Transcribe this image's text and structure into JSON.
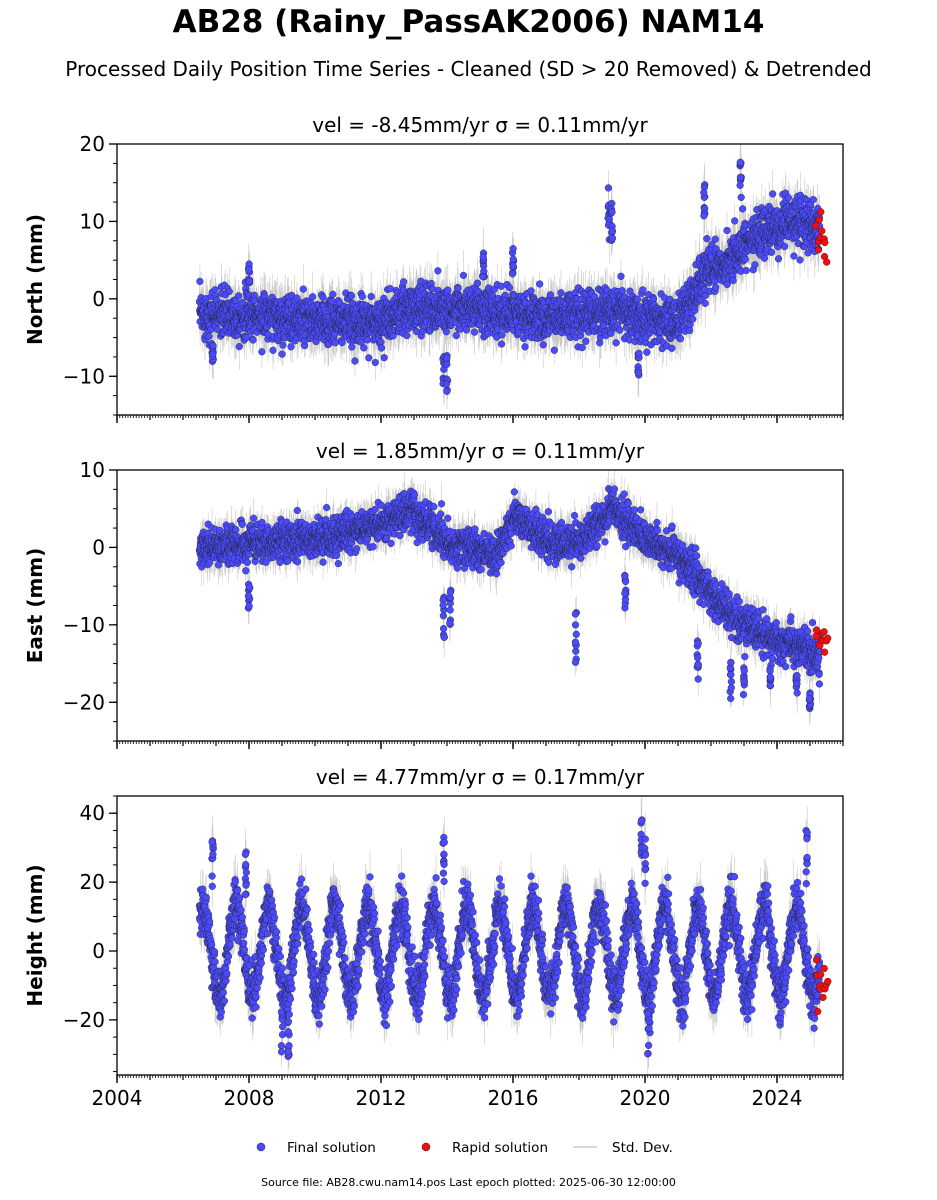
{
  "title": "AB28 (Rainy_PassAK2006) NAM14",
  "subtitle": "Processed Daily Position Time Series - Cleaned (SD > 20 Removed) & Detrended",
  "source_note": "Source file: AB28.cwu.nam14.pos  Last epoch plotted: 2025-06-30 12:00:00",
  "legend": [
    {
      "label": "Final solution",
      "color": "#4a4aff",
      "kind": "marker"
    },
    {
      "label": "Rapid solution",
      "color": "#ee1111",
      "kind": "marker"
    },
    {
      "label": "Std. Dev.",
      "color": "#c8c8c8",
      "kind": "line"
    }
  ],
  "colors": {
    "final": "#4a4aff",
    "rapid": "#ee1111",
    "stddev": "#888888",
    "edge": "#222222"
  },
  "chart_data": [
    {
      "type": "scatter",
      "panel_title": "vel = -8.45mm/yr   σ = 0.11mm/yr",
      "ylabel": "North (mm)",
      "xlim": [
        2004,
        2026
      ],
      "ylim": [
        -15,
        20
      ],
      "yticks": [
        -10,
        0,
        10,
        20
      ],
      "ytick_labels": [
        "−10",
        "0",
        "10",
        "20"
      ],
      "xticks": [
        2004,
        2008,
        2012,
        2016,
        2020,
        2024
      ],
      "show_xtick_labels": false,
      "data_start": 2006.5,
      "data_end": 2025.3,
      "final_series_approx": [
        [
          2006.5,
          -2
        ],
        [
          2008,
          -2
        ],
        [
          2010,
          -3
        ],
        [
          2012,
          -3
        ],
        [
          2013,
          -1
        ],
        [
          2015,
          -1.5
        ],
        [
          2017,
          -2.5
        ],
        [
          2019,
          -1.5
        ],
        [
          2020,
          -2.5
        ],
        [
          2021,
          -3
        ],
        [
          2021.4,
          0
        ],
        [
          2021.9,
          4
        ],
        [
          2022.5,
          5
        ],
        [
          2023.5,
          8.5
        ],
        [
          2024.5,
          10
        ],
        [
          2025.3,
          9
        ]
      ],
      "rapid_range": [
        2025.2,
        2025.5
      ],
      "rapid_level": 8.5,
      "noise_sd": 1.5,
      "spikes": [
        [
          2006.9,
          -9
        ],
        [
          2008.0,
          5
        ],
        [
          2013.9,
          -11
        ],
        [
          2014.0,
          -12
        ],
        [
          2015.1,
          6
        ],
        [
          2016.0,
          7
        ],
        [
          2018.9,
          15
        ],
        [
          2019.0,
          14
        ],
        [
          2019.8,
          -10
        ],
        [
          2021.8,
          16
        ],
        [
          2022.9,
          18
        ]
      ]
    },
    {
      "type": "scatter",
      "panel_title": "vel = 1.85mm/yr   σ = 0.11mm/yr",
      "ylabel": "East (mm)",
      "xlim": [
        2004,
        2026
      ],
      "ylim": [
        -25,
        10
      ],
      "yticks": [
        -20,
        -10,
        0,
        10
      ],
      "ytick_labels": [
        "−20",
        "−10",
        "0",
        "10"
      ],
      "xticks": [
        2004,
        2008,
        2012,
        2016,
        2020,
        2024
      ],
      "show_xtick_labels": false,
      "data_start": 2006.5,
      "data_end": 2025.3,
      "final_series_approx": [
        [
          2006.5,
          0
        ],
        [
          2008,
          0.5
        ],
        [
          2010,
          1
        ],
        [
          2012,
          3
        ],
        [
          2013,
          5
        ],
        [
          2014,
          0.5
        ],
        [
          2015.5,
          -1
        ],
        [
          2016,
          4
        ],
        [
          2017,
          1
        ],
        [
          2018,
          0.5
        ],
        [
          2019,
          5
        ],
        [
          2020,
          1
        ],
        [
          2021,
          -1
        ],
        [
          2022,
          -6
        ],
        [
          2023,
          -10
        ],
        [
          2024,
          -12
        ],
        [
          2025.3,
          -14
        ]
      ],
      "rapid_range": [
        2025.2,
        2025.5
      ],
      "rapid_level": -12,
      "noise_sd": 1.2,
      "spikes": [
        [
          2008.0,
          -8
        ],
        [
          2013.9,
          -12
        ],
        [
          2014.1,
          -10
        ],
        [
          2017.9,
          -15
        ],
        [
          2019.4,
          -8
        ],
        [
          2021.6,
          -17
        ],
        [
          2022.6,
          -20
        ],
        [
          2023.0,
          -20
        ],
        [
          2023.8,
          -18
        ],
        [
          2024.6,
          -19
        ],
        [
          2025.0,
          -21
        ]
      ]
    },
    {
      "type": "scatter",
      "panel_title": "vel = 4.77mm/yr   σ = 0.17mm/yr",
      "ylabel": "Height (mm)",
      "xlim": [
        2004,
        2026
      ],
      "ylim": [
        -36,
        45
      ],
      "yticks": [
        -20,
        0,
        20,
        40
      ],
      "ytick_labels": [
        "−20",
        "0",
        "20",
        "40"
      ],
      "xticks": [
        2004,
        2008,
        2012,
        2016,
        2020,
        2024
      ],
      "show_xtick_labels": true,
      "xtick_labels": [
        "2004",
        "2008",
        "2012",
        "2016",
        "2020",
        "2024"
      ],
      "data_start": 2006.5,
      "data_end": 2025.3,
      "final_series_approx": [
        [
          2006.5,
          0
        ],
        [
          2025.3,
          0
        ]
      ],
      "seasonal_amplitude": 13,
      "rapid_range": [
        2025.2,
        2025.5
      ],
      "rapid_level": -10,
      "noise_sd": 3.5,
      "spikes": [
        [
          2006.9,
          32
        ],
        [
          2007.9,
          29
        ],
        [
          2009.0,
          -30
        ],
        [
          2013.9,
          35
        ],
        [
          2019.9,
          40
        ],
        [
          2020.0,
          33
        ],
        [
          2024.9,
          35
        ],
        [
          2020.1,
          -30
        ],
        [
          2009.2,
          -31
        ]
      ]
    }
  ]
}
